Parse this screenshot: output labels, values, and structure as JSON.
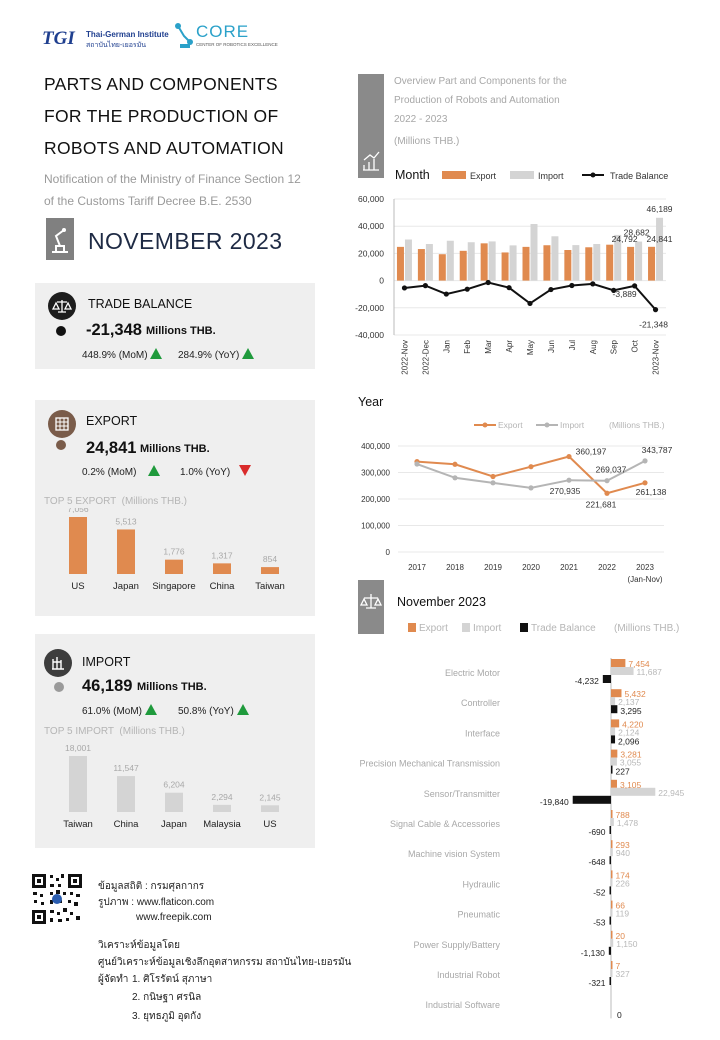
{
  "header": {
    "tgi_mark": "TGI",
    "tgi_name_en": "Thai-German Institute",
    "tgi_name_th": "สถาบันไทย-เยอรมัน",
    "core_name": "CORE",
    "core_sub": "CENTER OF ROBOTICS EXCELLENCE"
  },
  "title": {
    "line1": "PARTS AND COMPONENTS",
    "line2": "FOR THE PRODUCTION OF",
    "line3": "ROBOTS AND AUTOMATION",
    "sub1": "Notification of the Ministry of Finance Section 12",
    "sub2": "of the Customs Tariff Decree B.E. 2530",
    "month": "NOVEMBER  2023"
  },
  "trade_balance": {
    "label": "TRADE BALANCE",
    "value": "-21,348",
    "unit": "Millions THB.",
    "mom": "448.9% (MoM)",
    "yoy": "284.9% (YoY)"
  },
  "export": {
    "label": "EXPORT",
    "value": "24,841",
    "unit": "Millions THB.",
    "mom": "0.2% (MoM)",
    "yoy": "1.0% (YoY)",
    "top5_title": "TOP 5 EXPORT",
    "top5_unit": "(Millions THB.)",
    "top5": [
      {
        "country": "US",
        "value": 7056,
        "label": "7,056"
      },
      {
        "country": "Japan",
        "value": 5513,
        "label": "5,513"
      },
      {
        "country": "Singapore",
        "value": 1776,
        "label": "1,776"
      },
      {
        "country": "China",
        "value": 1317,
        "label": "1,317"
      },
      {
        "country": "Taiwan",
        "value": 854,
        "label": "854"
      }
    ]
  },
  "import": {
    "label": "IMPORT",
    "value": "46,189",
    "unit": "Millions THB.",
    "mom": "61.0% (MoM)",
    "yoy": "50.8% (YoY)",
    "top5_title": "TOP 5 IMPORT",
    "top5_unit": "(Millions THB.)",
    "top5": [
      {
        "country": "Taiwan",
        "value": 18001,
        "label": "18,001"
      },
      {
        "country": "China",
        "value": 11547,
        "label": "11,547"
      },
      {
        "country": "Japan",
        "value": 6204,
        "label": "6,204"
      },
      {
        "country": "Malaysia",
        "value": 2294,
        "label": "2,294"
      },
      {
        "country": "US",
        "value": 2145,
        "label": "2,145"
      }
    ]
  },
  "footer": {
    "source1": "ข้อมูลสถิติ : กรมศุลกากร",
    "source2": "รูปภาพ : www.flaticon.com",
    "source3": "www.freepik.com",
    "analysis": "วิเคราะห์ข้อมูลโดย",
    "center": "ศูนย์วิเคราะห์ข้อมูลเชิงลึกอุตสาหกรรม สถาบันไทย-เยอรมัน",
    "authors_label": "ผู้จัดทำ",
    "author1": "1. ศิโรรัตน์ สุภาษา",
    "author2": "2. กนิษฐา ศรนิล",
    "author3": "3. ยุทธภูมิ อุดกัง"
  },
  "overview": {
    "title1": "Overview Part and Components for the",
    "title2": "Production of Robots and Automation",
    "title3": "2022 - 2023",
    "unit": "(Millions THB.)"
  },
  "colors": {
    "export": "#e08a4f",
    "import": "#d4d4d4",
    "balance": "#111111",
    "up": "#1f9a3c",
    "down": "#d92b2b"
  },
  "chart_data": [
    {
      "type": "bar",
      "title": "Month",
      "series_types": {
        "Export": "bar",
        "Import": "bar",
        "Trade Balance": "line"
      },
      "categories": [
        "2022-Nov",
        "2022-Dec",
        "Jan",
        "Feb",
        "Mar",
        "Apr",
        "May",
        "Jun",
        "Jul",
        "Aug",
        "Sep",
        "Oct",
        "2023-Nov"
      ],
      "series": [
        {
          "name": "Export",
          "values": [
            24800,
            23200,
            19400,
            21900,
            27400,
            20700,
            24800,
            26000,
            22500,
            24500,
            26400,
            24792,
            24841
          ]
        },
        {
          "name": "Import",
          "values": [
            30200,
            26900,
            29300,
            28200,
            28800,
            25900,
            41600,
            32600,
            26100,
            26900,
            33600,
            28682,
            46189
          ]
        },
        {
          "name": "Trade Balance",
          "values": [
            -5400,
            -3700,
            -9900,
            -6300,
            -1400,
            -5200,
            -16800,
            -6600,
            -3600,
            -2400,
            -7200,
            -3889,
            -21348
          ]
        }
      ],
      "ylim": [
        -40000,
        60000
      ],
      "yticks": [
        "60,000",
        "40,000",
        "20,000",
        "0",
        "-20,000",
        "-40,000"
      ],
      "data_labels": {
        "import_last": "46,189",
        "import_oct": "28,682",
        "export_oct": "24,792",
        "export_last": "24,841",
        "balance_oct": "-3,889",
        "balance_last": "-21,348"
      },
      "legend": "top"
    },
    {
      "type": "line",
      "title": "Year",
      "unit": "(Millions THB.)",
      "categories": [
        "2017",
        "2018",
        "2019",
        "2020",
        "2021",
        "2022",
        "2023"
      ],
      "category_note": "(Jan-Nov)",
      "series": [
        {
          "name": "Export",
          "values": [
            341000,
            331000,
            285000,
            322000,
            360197,
            221681,
            261138
          ]
        },
        {
          "name": "Import",
          "values": [
            332000,
            280000,
            261000,
            242000,
            270935,
            269037,
            343787
          ]
        }
      ],
      "ylim": [
        0,
        400000
      ],
      "yticks": [
        "400,000",
        "300,000",
        "200,000",
        "100,000",
        "0"
      ],
      "data_labels": [
        "360,197",
        "270,935",
        "269,037",
        "221,681",
        "343,787",
        "261,138"
      ],
      "legend": "top"
    },
    {
      "type": "bar",
      "orientation": "horizontal",
      "title": "November 2023",
      "unit": "(Millions THB.)",
      "categories": [
        "Electric Motor",
        "Controller",
        "Interface",
        "Precision Mechanical Transmission",
        "Sensor/Transmitter",
        "Signal Cable & Accessories",
        "Machine vision System",
        "Hydraulic",
        "Pneumatic",
        "Power Supply/Battery",
        "Industrial Robot",
        "Industrial Software"
      ],
      "series": [
        {
          "name": "Export",
          "values": [
            7454,
            5432,
            4220,
            3281,
            3105,
            788,
            293,
            174,
            66,
            20,
            7,
            0
          ]
        },
        {
          "name": "Import",
          "values": [
            11687,
            2137,
            2124,
            3055,
            22945,
            1478,
            940,
            226,
            119,
            1150,
            327,
            0
          ]
        },
        {
          "name": "Trade Balance",
          "values": [
            -4232,
            3295,
            2096,
            227,
            -19840,
            -690,
            -648,
            -52,
            -53,
            -1130,
            -321,
            0
          ]
        }
      ],
      "value_labels": {
        "export": [
          "7,454",
          "5,432",
          "4,220",
          "3,281",
          "3,105",
          "788",
          "293",
          "174",
          "66",
          "20",
          "7",
          ""
        ],
        "import": [
          "11,687",
          "2,137",
          "2,124",
          "3,055",
          "22,945",
          "1,478",
          "940",
          "226",
          "119",
          "1,150",
          "327",
          ""
        ],
        "balance": [
          "-4,232",
          "3,295",
          "2,096",
          "227",
          "-19,840",
          "-690",
          "-648",
          "-52",
          "-53",
          "-1,130",
          "-321",
          "0"
        ]
      },
      "legend": "top"
    }
  ]
}
